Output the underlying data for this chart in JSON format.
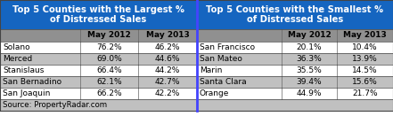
{
  "title_left": "Top 5 Counties with the Largest %\nof Distressed Sales",
  "title_right": "Top 5 Counties with the Smallest %\nof Distressed Sales",
  "header": [
    "",
    "May 2012",
    "May 2013"
  ],
  "left_rows": [
    [
      "Solano",
      "76.2%",
      "46.2%"
    ],
    [
      "Merced",
      "69.0%",
      "44.6%"
    ],
    [
      "Stanislaus",
      "66.4%",
      "44.2%"
    ],
    [
      "San Bernadino",
      "62.1%",
      "42.7%"
    ],
    [
      "San Joaquin",
      "66.2%",
      "42.2%"
    ]
  ],
  "right_rows": [
    [
      "San Francisco",
      "20.1%",
      "10.4%"
    ],
    [
      "San Mateo",
      "36.3%",
      "13.9%"
    ],
    [
      "Marin",
      "35.5%",
      "14.5%"
    ],
    [
      "Santa Clara",
      "39.4%",
      "15.6%"
    ],
    [
      "Orange",
      "44.9%",
      "21.7%"
    ]
  ],
  "footer": "Source: PropertyRadar.com",
  "title_bg": "#1565C0",
  "header_bg": "#909090",
  "row_bg_white": "#FFFFFF",
  "row_bg_gray": "#C0C0C0",
  "footer_bg": "#C0C0C0",
  "title_color": "#FFFFFF",
  "cell_color": "#000000",
  "divider_color": "#4444FF",
  "col_line_color": "#666666"
}
